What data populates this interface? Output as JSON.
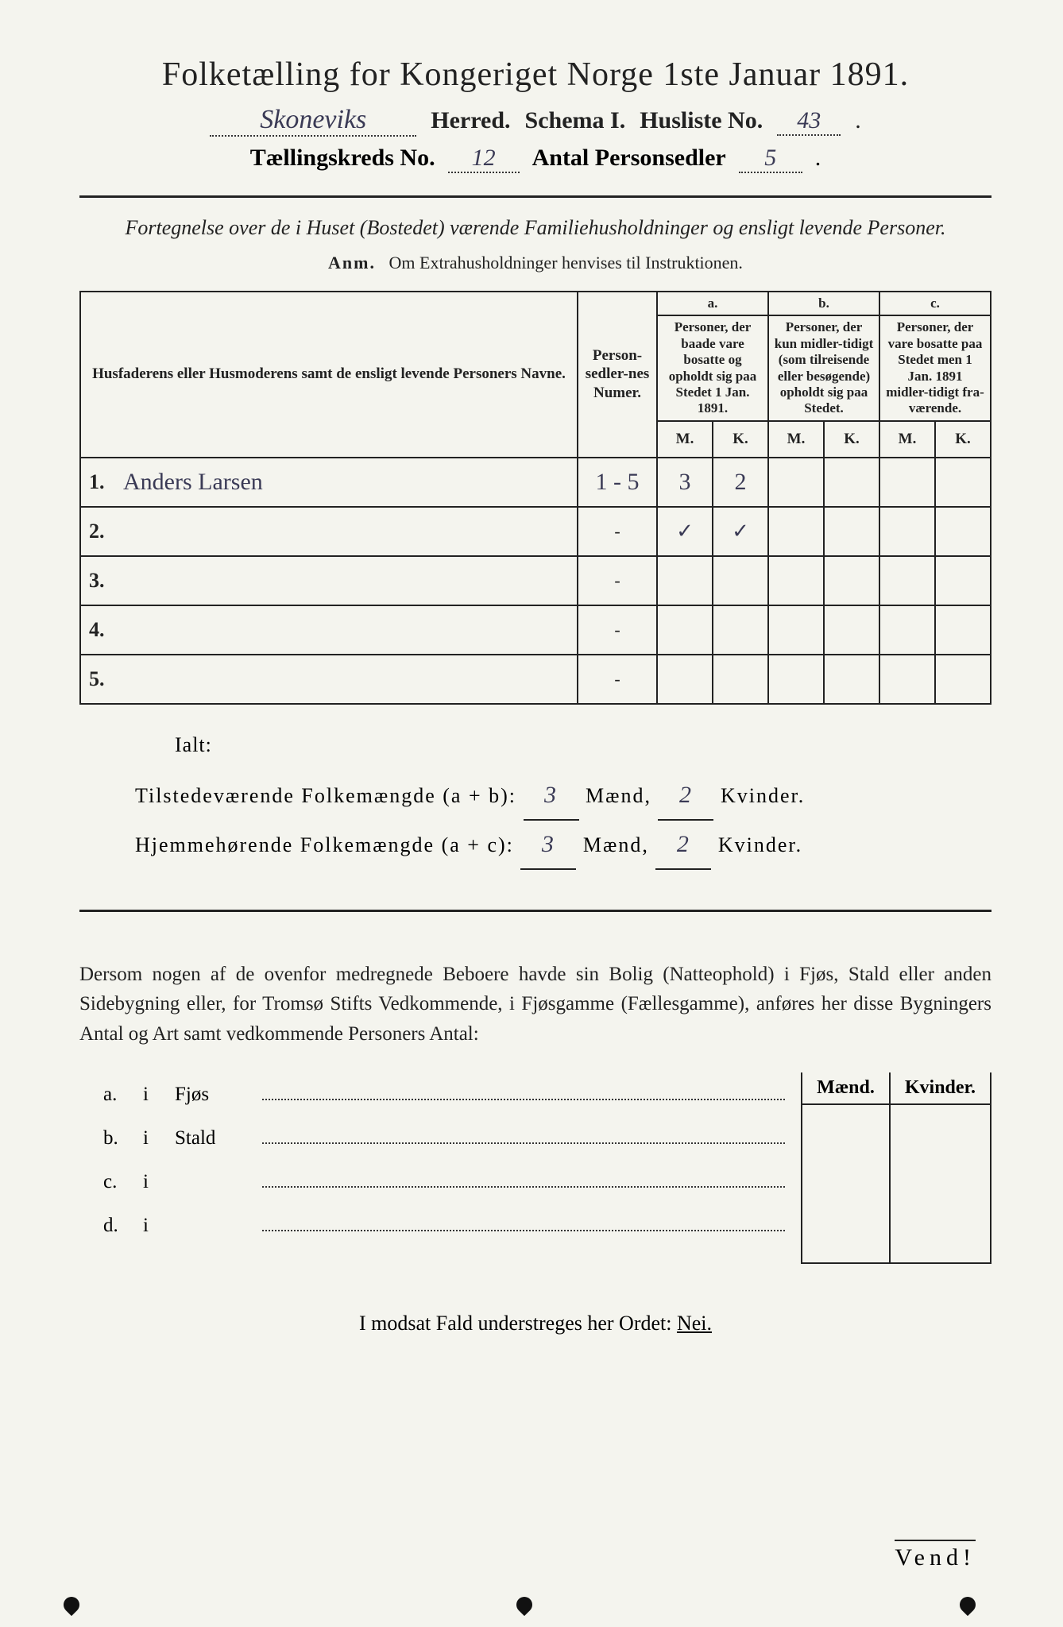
{
  "header": {
    "title": "Folketælling for Kongeriget Norge 1ste Januar 1891.",
    "herred_hw": "Skoneviks",
    "herred_label": "Herred.",
    "schema_label": "Schema I.",
    "husliste_label": "Husliste No.",
    "husliste_hw": "43",
    "kreds_label": "Tællingskreds No.",
    "kreds_hw": "12",
    "antal_label": "Antal Personsedler",
    "antal_hw": "5"
  },
  "desc": {
    "line": "Fortegnelse over de i Huset (Bostedet) værende Familiehusholdninger og ensligt levende Personer.",
    "anm_label": "Anm.",
    "anm_text": "Om Extrahusholdninger henvises til Instruktionen."
  },
  "table": {
    "col_name": "Husfaderens eller Husmoderens samt de ensligt levende Personers Navne.",
    "col_seq": "Person-sedler-nes Numer.",
    "col_a_label": "a.",
    "col_a": "Personer, der baade vare bosatte og opholdt sig paa Stedet 1 Jan. 1891.",
    "col_b_label": "b.",
    "col_b": "Personer, der kun midler-tidigt (som tilreisende eller besøgende) opholdt sig paa Stedet.",
    "col_c_label": "c.",
    "col_c": "Personer, der vare bosatte paa Stedet men 1 Jan. 1891 midler-tidigt fra-værende.",
    "mk_m": "M.",
    "mk_k": "K.",
    "rows": [
      {
        "n": "1.",
        "name": "Anders Larsen",
        "seq": "1 - 5",
        "a_m": "3",
        "a_k": "2",
        "b_m": "",
        "b_k": "",
        "c_m": "",
        "c_k": ""
      },
      {
        "n": "2.",
        "name": "",
        "seq": "-",
        "a_m": "✓",
        "a_k": "✓",
        "b_m": "",
        "b_k": "",
        "c_m": "",
        "c_k": ""
      },
      {
        "n": "3.",
        "name": "",
        "seq": "-",
        "a_m": "",
        "a_k": "",
        "b_m": "",
        "b_k": "",
        "c_m": "",
        "c_k": ""
      },
      {
        "n": "4.",
        "name": "",
        "seq": "-",
        "a_m": "",
        "a_k": "",
        "b_m": "",
        "b_k": "",
        "c_m": "",
        "c_k": ""
      },
      {
        "n": "5.",
        "name": "",
        "seq": "-",
        "a_m": "",
        "a_k": "",
        "b_m": "",
        "b_k": "",
        "c_m": "",
        "c_k": ""
      }
    ]
  },
  "totals": {
    "ialt": "Ialt:",
    "line1_pre": "Tilstedeværende Folkemængde (a + b):",
    "line2_pre": "Hjemmehørende Folkemængde (a + c):",
    "maend": "Mænd,",
    "kvinder": "Kvinder.",
    "t_m": "3",
    "t_k": "2",
    "h_m": "3",
    "h_k": "2"
  },
  "dersom": "Dersom nogen af de ovenfor medregnede Beboere havde sin Bolig (Natteophold) i Fjøs, Stald eller anden Sidebygning eller, for Tromsø Stifts Vedkommende, i Fjøsgamme (Fællesgamme), anføres her disse Bygningers Antal og Art samt vedkommende Personers Antal:",
  "abcd": {
    "mk_m": "Mænd.",
    "mk_k": "Kvinder.",
    "rows": [
      {
        "l": "a.",
        "i": "i",
        "t": "Fjøs"
      },
      {
        "l": "b.",
        "i": "i",
        "t": "Stald"
      },
      {
        "l": "c.",
        "i": "i",
        "t": ""
      },
      {
        "l": "d.",
        "i": "i",
        "t": ""
      }
    ]
  },
  "modsat": {
    "pre": "I modsat Fald understreges her Ordet:",
    "nei": "Nei."
  },
  "vend": "Vend!"
}
